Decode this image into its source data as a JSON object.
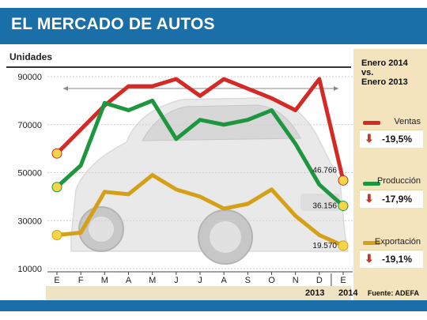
{
  "header": {
    "title": "EL MERCADO DE AUTOS"
  },
  "chart_data": {
    "type": "line",
    "ylabel": "Unidades",
    "ylim": [
      10000,
      95000
    ],
    "yticks": [
      "90000",
      "70000",
      "50000",
      "30000",
      "10000"
    ],
    "ytick_values": [
      90000,
      70000,
      50000,
      30000,
      10000
    ],
    "categories": [
      "E",
      "F",
      "M",
      "A",
      "M",
      "J",
      "J",
      "A",
      "S",
      "O",
      "N",
      "D",
      "E"
    ],
    "grid": true,
    "series": [
      {
        "name": "Ventas",
        "color": "#d42a26",
        "values": [
          58000,
          68000,
          78000,
          86000,
          86000,
          89000,
          82000,
          89000,
          85000,
          81000,
          76000,
          89000,
          46766
        ]
      },
      {
        "name": "Producción",
        "color": "#1e9640",
        "values": [
          44000,
          53000,
          79000,
          76000,
          80000,
          64000,
          72000,
          70000,
          72000,
          76000,
          62000,
          45000,
          36156
        ]
      },
      {
        "name": "Exportación",
        "color": "#d4a017",
        "values": [
          24000,
          25000,
          42000,
          41000,
          49000,
          43000,
          40000,
          35000,
          37000,
          43000,
          32000,
          24000,
          19570
        ]
      }
    ],
    "end_labels": [
      "46.766",
      "36.156",
      "19.570"
    ]
  },
  "legend": {
    "title_lines": [
      "Enero 2014",
      "vs.",
      "Enero 2013"
    ],
    "entries": [
      {
        "label": "Ventas",
        "color": "#d42a26",
        "pct": "-19,5%",
        "arrow": "down-arrow-icon"
      },
      {
        "label": "Producción",
        "color": "#1e9640",
        "pct": "-17,9%",
        "arrow": "down-arrow-icon"
      },
      {
        "label": "Exportación",
        "color": "#d4a017",
        "pct": "-19,1%",
        "arrow": "down-arrow-icon"
      }
    ]
  },
  "years": {
    "y1": "2013",
    "y2": "2014"
  },
  "source": "Fuente: ADEFA"
}
